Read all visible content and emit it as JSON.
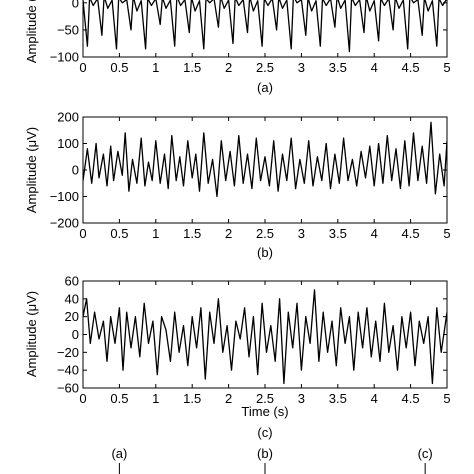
{
  "chart_data": [
    {
      "type": "line",
      "panel_label": "(a)",
      "ylabel": "Amplitude (μV)",
      "xlabel": "",
      "xlim": [
        0,
        5
      ],
      "ylim": [
        -100,
        20
      ],
      "xticks": [
        0,
        0.5,
        1,
        1.5,
        2,
        2.5,
        3,
        3.5,
        4,
        4.5,
        5
      ],
      "xtick_labels": [
        "0",
        "0.5",
        "1",
        "1.5",
        "2",
        "2.5",
        "3",
        "3.5",
        "4",
        "4.5",
        "5"
      ],
      "yticks": [
        0,
        -50,
        -100
      ],
      "ytick_labels": [
        "0",
        "−50",
        "−100"
      ],
      "grid": false,
      "series": [
        {
          "x": [
            0,
            0.06,
            0.09,
            0.14,
            0.2,
            0.26,
            0.29,
            0.34,
            0.4,
            0.46,
            0.49,
            0.54,
            0.6,
            0.66,
            0.69,
            0.74,
            0.8,
            0.86,
            0.89,
            0.94,
            1.0,
            1.06,
            1.09,
            1.14,
            1.2,
            1.26,
            1.29,
            1.34,
            1.4,
            1.46,
            1.49,
            1.54,
            1.6,
            1.66,
            1.69,
            1.74,
            1.8,
            1.86,
            1.89,
            1.94,
            2.0,
            2.06,
            2.09,
            2.14,
            2.2,
            2.26,
            2.29,
            2.34,
            2.4,
            2.46,
            2.49,
            2.54,
            2.6,
            2.66,
            2.69,
            2.74,
            2.8,
            2.86,
            2.89,
            2.94,
            3.0,
            3.06,
            3.09,
            3.14,
            3.2,
            3.26,
            3.29,
            3.34,
            3.4,
            3.46,
            3.49,
            3.54,
            3.6,
            3.66,
            3.69,
            3.74,
            3.8,
            3.86,
            3.89,
            3.94,
            4.0,
            4.06,
            4.09,
            4.14,
            4.2,
            4.26,
            4.29,
            4.34,
            4.4,
            4.46,
            4.49,
            4.54,
            4.6,
            4.66,
            4.69,
            4.74,
            4.8,
            4.86,
            4.89,
            4.94,
            5.0
          ],
          "y": [
            5,
            -80,
            10,
            -5,
            8,
            -60,
            12,
            -10,
            5,
            -85,
            10,
            0,
            6,
            -50,
            12,
            -15,
            4,
            -85,
            8,
            -5,
            8,
            -40,
            10,
            -10,
            5,
            -80,
            12,
            -5,
            6,
            -55,
            10,
            -15,
            4,
            -85,
            8,
            0,
            8,
            -45,
            12,
            -10,
            5,
            -75,
            10,
            -5,
            6,
            -55,
            12,
            -15,
            4,
            -80,
            8,
            -5,
            8,
            -50,
            10,
            -10,
            5,
            -85,
            12,
            0,
            6,
            -60,
            10,
            -15,
            4,
            -80,
            8,
            -5,
            8,
            -45,
            12,
            -10,
            5,
            -90,
            10,
            -5,
            6,
            -55,
            12,
            -15,
            4,
            -70,
            8,
            -5,
            8,
            -50,
            10,
            -10,
            5,
            -85,
            12,
            0,
            6,
            -60,
            10,
            -15,
            4,
            -80,
            8,
            -5,
            8
          ]
        }
      ]
    },
    {
      "type": "line",
      "panel_label": "(b)",
      "ylabel": "Amplitude (μV)",
      "xlabel": "",
      "xlim": [
        0,
        5
      ],
      "ylim": [
        -200,
        200
      ],
      "xticks": [
        0,
        0.5,
        1,
        1.5,
        2,
        2.5,
        3,
        3.5,
        4,
        4.5,
        5
      ],
      "xtick_labels": [
        "0",
        "0.5",
        "1",
        "1.5",
        "2",
        "2.5",
        "3",
        "3.5",
        "4",
        "4.5",
        "5"
      ],
      "yticks": [
        200,
        100,
        0,
        -100,
        -200
      ],
      "ytick_labels": [
        "200",
        "100",
        "0",
        "−100",
        "−200"
      ],
      "grid": false,
      "series": [
        {
          "x": [
            0,
            0.06,
            0.12,
            0.18,
            0.22,
            0.28,
            0.33,
            0.38,
            0.42,
            0.48,
            0.54,
            0.58,
            0.63,
            0.68,
            0.74,
            0.8,
            0.85,
            0.9,
            0.95,
            1.0,
            1.06,
            1.12,
            1.17,
            1.22,
            1.28,
            1.33,
            1.38,
            1.44,
            1.5,
            1.55,
            1.6,
            1.66,
            1.72,
            1.78,
            1.84,
            1.9,
            1.96,
            2.02,
            2.08,
            2.14,
            2.2,
            2.26,
            2.32,
            2.38,
            2.44,
            2.5,
            2.56,
            2.62,
            2.68,
            2.74,
            2.8,
            2.86,
            2.92,
            2.98,
            3.04,
            3.1,
            3.16,
            3.22,
            3.28,
            3.34,
            3.4,
            3.46,
            3.52,
            3.58,
            3.64,
            3.7,
            3.76,
            3.82,
            3.88,
            3.94,
            4.0,
            4.06,
            4.12,
            4.18,
            4.24,
            4.3,
            4.36,
            4.42,
            4.48,
            4.54,
            4.6,
            4.66,
            4.72,
            4.78,
            4.84,
            4.9,
            4.96,
            5.0
          ],
          "y": [
            -40,
            80,
            -50,
            100,
            -30,
            60,
            -60,
            90,
            -40,
            70,
            -20,
            140,
            -80,
            40,
            -50,
            120,
            -60,
            30,
            -40,
            110,
            -50,
            60,
            -70,
            130,
            -40,
            50,
            -60,
            110,
            -30,
            60,
            -80,
            140,
            -50,
            40,
            -100,
            110,
            -40,
            70,
            -60,
            130,
            -50,
            60,
            -70,
            120,
            -40,
            50,
            -60,
            110,
            -80,
            60,
            -40,
            120,
            -70,
            40,
            -50,
            110,
            -60,
            50,
            -40,
            100,
            -70,
            60,
            -50,
            120,
            -40,
            40,
            -60,
            70,
            -30,
            90,
            -60,
            100,
            -50,
            130,
            -40,
            80,
            -70,
            110,
            -60,
            140,
            -40,
            90,
            -50,
            180,
            -90,
            60,
            -60,
            110
          ]
        }
      ]
    },
    {
      "type": "line",
      "panel_label": "(c)",
      "ylabel": "Amplitude (μV)",
      "xlabel": "Time (s)",
      "xlim": [
        0,
        5
      ],
      "ylim": [
        -60,
        60
      ],
      "xticks": [
        0,
        0.5,
        1,
        1.5,
        2,
        2.5,
        3,
        3.5,
        4,
        4.5,
        5
      ],
      "xtick_labels": [
        "0",
        "0.5",
        "1",
        "1.5",
        "2",
        "2.5",
        "3",
        "3.5",
        "4",
        "4.5",
        "5"
      ],
      "yticks": [
        60,
        40,
        20,
        0,
        -20,
        -40,
        -60
      ],
      "ytick_labels": [
        "60",
        "40",
        "20",
        "0",
        "−20",
        "−40",
        "−60"
      ],
      "grid": false,
      "series": [
        {
          "x": [
            0,
            0.05,
            0.1,
            0.16,
            0.22,
            0.28,
            0.33,
            0.38,
            0.44,
            0.5,
            0.55,
            0.6,
            0.66,
            0.72,
            0.78,
            0.84,
            0.9,
            0.96,
            1.02,
            1.08,
            1.14,
            1.2,
            1.26,
            1.32,
            1.38,
            1.44,
            1.5,
            1.56,
            1.62,
            1.68,
            1.74,
            1.8,
            1.86,
            1.92,
            1.98,
            2.04,
            2.1,
            2.16,
            2.22,
            2.28,
            2.34,
            2.4,
            2.46,
            2.52,
            2.58,
            2.64,
            2.7,
            2.76,
            2.82,
            2.88,
            2.94,
            3.0,
            3.06,
            3.12,
            3.18,
            3.24,
            3.3,
            3.36,
            3.42,
            3.48,
            3.54,
            3.6,
            3.66,
            3.72,
            3.78,
            3.84,
            3.9,
            3.96,
            4.02,
            4.08,
            4.14,
            4.2,
            4.26,
            4.32,
            4.38,
            4.44,
            4.5,
            4.56,
            4.62,
            4.68,
            4.74,
            4.8,
            4.86,
            4.92,
            5.0
          ],
          "y": [
            20,
            40,
            -10,
            25,
            -5,
            15,
            -30,
            20,
            -10,
            30,
            -40,
            25,
            -15,
            20,
            -25,
            35,
            -10,
            15,
            -45,
            20,
            5,
            -30,
            25,
            -20,
            10,
            -35,
            20,
            -15,
            30,
            -50,
            25,
            -10,
            40,
            -20,
            10,
            -40,
            15,
            -5,
            30,
            -25,
            20,
            -45,
            35,
            -20,
            10,
            -30,
            40,
            -55,
            25,
            -15,
            35,
            -40,
            20,
            -10,
            50,
            -30,
            25,
            -20,
            15,
            -35,
            30,
            -10,
            20,
            -40,
            25,
            -15,
            30,
            -25,
            15,
            -30,
            35,
            -20,
            10,
            -40,
            20,
            -15,
            25,
            -35,
            15,
            -10,
            20,
            -55,
            30,
            -20,
            25
          ]
        }
      ]
    }
  ],
  "bottom_markers": [
    {
      "label": "(a)",
      "x": 0.5
    },
    {
      "label": "(b)",
      "x": 2.5
    },
    {
      "label": "(c)",
      "x": 4.7
    }
  ]
}
